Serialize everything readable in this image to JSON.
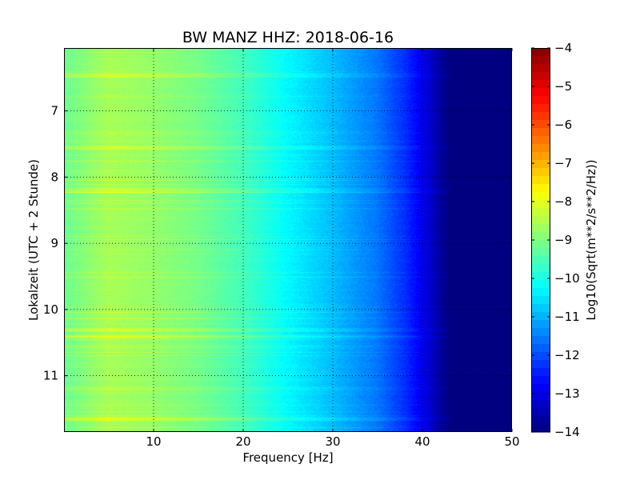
{
  "chart_data": {
    "type": "heatmap",
    "title": "BW MANZ HHZ: 2018-06-16",
    "xlabel": "Frequency [Hz]",
    "ylabel": "Lokalzeit (UTC + 2 Stunde)",
    "xlim": [
      0,
      50
    ],
    "ylim": [
      6.05,
      11.85
    ],
    "y_inverted": true,
    "grid": true,
    "x_ticks": [
      10,
      20,
      30,
      40,
      50
    ],
    "x_tick_labels": [
      "10",
      "20",
      "30",
      "40",
      "50"
    ],
    "y_ticks": [
      7,
      8,
      9,
      10,
      11
    ],
    "y_tick_labels": [
      "7",
      "8",
      "9",
      "10",
      "11"
    ],
    "colorbar": {
      "label": "Log10(Sqrt(m**2/s**2/Hz))",
      "range": [
        -14,
        -4
      ],
      "ticks": [
        -4,
        -5,
        -6,
        -7,
        -8,
        -9,
        -10,
        -11,
        -12,
        -13,
        -14
      ],
      "tick_labels": [
        "−4",
        "−5",
        "−6",
        "−7",
        "−8",
        "−9",
        "−10",
        "−11",
        "−12",
        "−13",
        "−14"
      ],
      "colormap": "jet"
    },
    "frequency_profile": {
      "frequency_hz": [
        0,
        5,
        10,
        15,
        20,
        25,
        30,
        35,
        38,
        40,
        41,
        42,
        43,
        50
      ],
      "log10_amplitude": [
        -9.2,
        -8.6,
        -8.8,
        -9.1,
        -9.6,
        -10.3,
        -10.9,
        -11.6,
        -12.3,
        -12.9,
        -13.3,
        -13.7,
        -14,
        -14
      ]
    },
    "noisy_hours": [
      6.45,
      7.55,
      8.2,
      10.3,
      10.4,
      11.65
    ]
  }
}
